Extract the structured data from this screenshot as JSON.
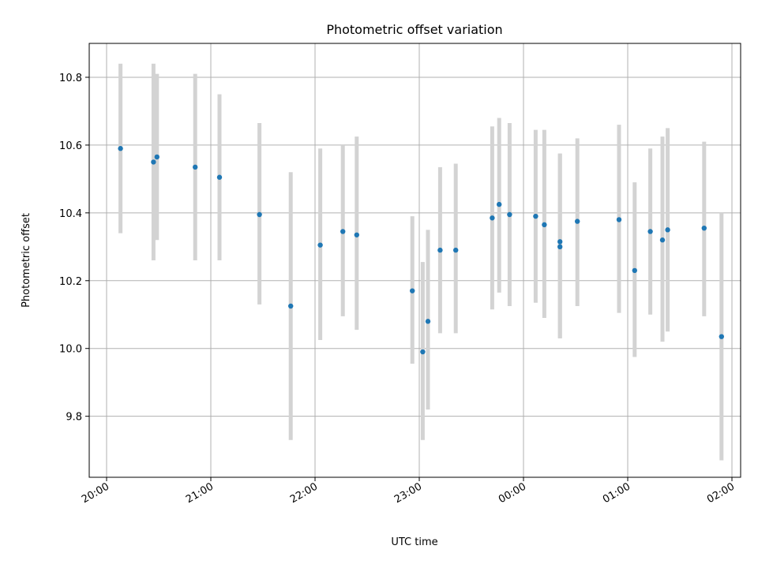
{
  "chart_data": {
    "type": "scatter",
    "title": "Photometric offset variation",
    "xlabel": "UTC time",
    "ylabel": "Photometric offset",
    "xlim": [
      "19:50",
      "02:05"
    ],
    "ylim": [
      9.62,
      10.9
    ],
    "grid": true,
    "x_ticks": [
      "20:00",
      "21:00",
      "22:00",
      "23:00",
      "00:00",
      "01:00",
      "02:00"
    ],
    "y_ticks": [
      9.8,
      10.0,
      10.2,
      10.4,
      10.6,
      10.8
    ],
    "colors": {
      "point": "#1f77b4",
      "errorbar": "#d3d3d3"
    },
    "points": [
      {
        "t": "20:08",
        "y": 10.59,
        "low": 10.34,
        "high": 10.84
      },
      {
        "t": "20:27",
        "y": 10.55,
        "low": 10.26,
        "high": 10.84
      },
      {
        "t": "20:29",
        "y": 10.565,
        "low": 10.32,
        "high": 10.81
      },
      {
        "t": "20:51",
        "y": 10.535,
        "low": 10.26,
        "high": 10.81
      },
      {
        "t": "21:05",
        "y": 10.505,
        "low": 10.26,
        "high": 10.75
      },
      {
        "t": "21:28",
        "y": 10.395,
        "low": 10.13,
        "high": 10.665
      },
      {
        "t": "21:46",
        "y": 10.125,
        "low": 9.73,
        "high": 10.52
      },
      {
        "t": "22:03",
        "y": 10.305,
        "low": 10.025,
        "high": 10.59
      },
      {
        "t": "22:16",
        "y": 10.345,
        "low": 10.095,
        "high": 10.6
      },
      {
        "t": "22:24",
        "y": 10.335,
        "low": 10.055,
        "high": 10.625
      },
      {
        "t": "22:56",
        "y": 10.17,
        "low": 9.955,
        "high": 10.39
      },
      {
        "t": "23:02",
        "y": 9.99,
        "low": 9.73,
        "high": 10.255
      },
      {
        "t": "23:05",
        "y": 10.08,
        "low": 9.82,
        "high": 10.35
      },
      {
        "t": "23:12",
        "y": 10.29,
        "low": 10.045,
        "high": 10.535
      },
      {
        "t": "23:21",
        "y": 10.29,
        "low": 10.045,
        "high": 10.545
      },
      {
        "t": "23:42",
        "y": 10.385,
        "low": 10.115,
        "high": 10.655
      },
      {
        "t": "23:46",
        "y": 10.425,
        "low": 10.165,
        "high": 10.68
      },
      {
        "t": "23:52",
        "y": 10.395,
        "low": 10.125,
        "high": 10.665
      },
      {
        "t": "00:07",
        "y": 10.39,
        "low": 10.135,
        "high": 10.645
      },
      {
        "t": "00:12",
        "y": 10.365,
        "low": 10.09,
        "high": 10.645
      },
      {
        "t": "00:21",
        "y": 10.315,
        "low": 10.03,
        "high": 10.575
      },
      {
        "t": "00:21",
        "y": 10.3,
        "low": 10.03,
        "high": 10.575
      },
      {
        "t": "00:31",
        "y": 10.375,
        "low": 10.125,
        "high": 10.62
      },
      {
        "t": "00:55",
        "y": 10.38,
        "low": 10.105,
        "high": 10.66
      },
      {
        "t": "01:04",
        "y": 10.23,
        "low": 9.975,
        "high": 10.49
      },
      {
        "t": "01:13",
        "y": 10.345,
        "low": 10.1,
        "high": 10.59
      },
      {
        "t": "01:20",
        "y": 10.32,
        "low": 10.02,
        "high": 10.625
      },
      {
        "t": "01:23",
        "y": 10.35,
        "low": 10.05,
        "high": 10.65
      },
      {
        "t": "01:44",
        "y": 10.355,
        "low": 10.095,
        "high": 10.61
      },
      {
        "t": "01:54",
        "y": 10.035,
        "low": 9.67,
        "high": 10.4
      }
    ]
  }
}
